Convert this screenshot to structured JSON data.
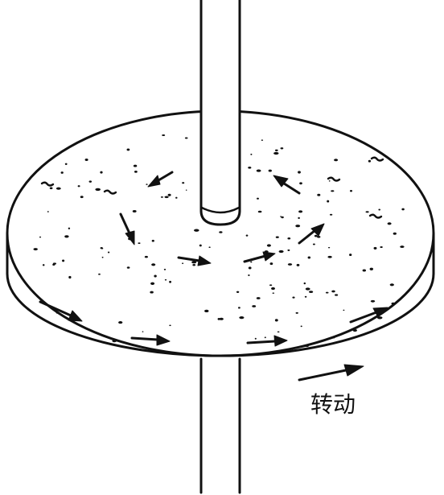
{
  "diagram": {
    "rotation_label": "转动"
  },
  "colors": {
    "ink": "#111111",
    "paper": "#ffffff"
  }
}
